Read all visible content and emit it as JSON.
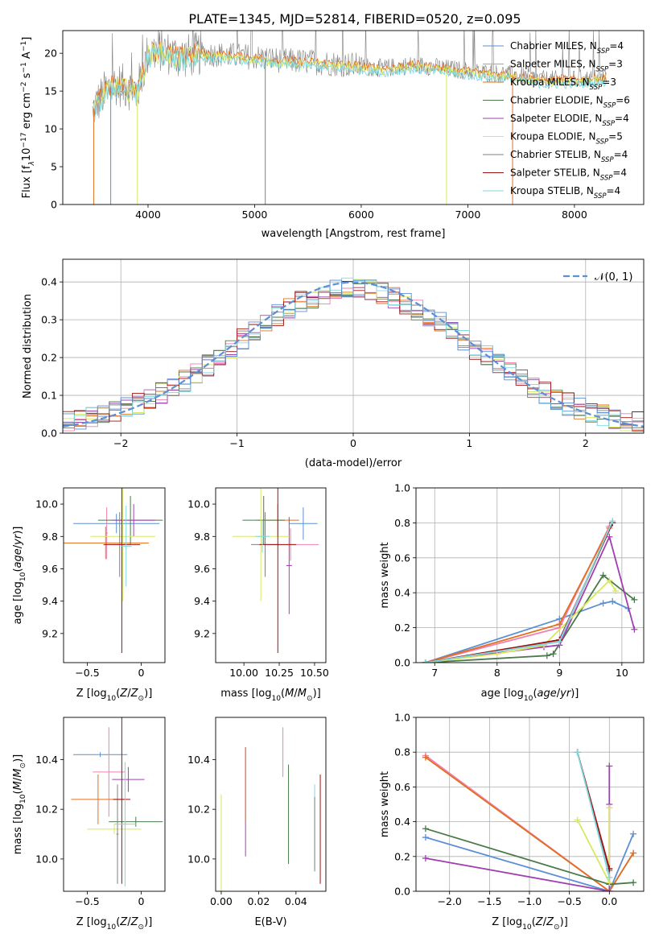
{
  "figure_title": "PLATE=1345, MJD=52814, FIBERID=0520, z=0.095",
  "colors": {
    "chabrier_miles": "#5b8fd6",
    "salpeter_miles": "#f07fb0",
    "kroupa_miles": "#e07020",
    "chabrier_elodie": "#4a7a4a",
    "salpeter_elodie": "#a040b0",
    "kroupa_elodie": "#d8e860",
    "chabrier_stelib": "#808080",
    "salpeter_stelib": "#a01010",
    "kroupa_stelib": "#80d8e0",
    "normal_curve": "#5b8fd6",
    "grid": "#b0b0b0"
  },
  "legend_spectrum": [
    {
      "key": "chabrier_miles",
      "label": "Chabrier MILES, N",
      "sub": "SSP",
      "tail": "=4"
    },
    {
      "key": "salpeter_miles",
      "label": "Salpeter MILES, N",
      "sub": "SSP",
      "tail": "=3"
    },
    {
      "key": "kroupa_miles",
      "label": "Kroupa MILES, N",
      "sub": "SSP",
      "tail": "=3"
    },
    {
      "key": "chabrier_elodie",
      "label": "Chabrier ELODIE, N",
      "sub": "SSP",
      "tail": "=6"
    },
    {
      "key": "salpeter_elodie",
      "label": "Salpeter ELODIE, N",
      "sub": "SSP",
      "tail": "=4"
    },
    {
      "key": "kroupa_elodie",
      "label": "Kroupa ELODIE, N",
      "sub": "SSP",
      "tail": "=5"
    },
    {
      "key": "chabrier_stelib",
      "label": "Chabrier STELIB, N",
      "sub": "SSP",
      "tail": "=4"
    },
    {
      "key": "salpeter_stelib",
      "label": "Salpeter STELIB, N",
      "sub": "SSP",
      "tail": "=4"
    },
    {
      "key": "kroupa_stelib",
      "label": "Kroupa STELIB, N",
      "sub": "SSP",
      "tail": "=4"
    }
  ],
  "chart_data": [
    {
      "id": "spectrum",
      "type": "line",
      "xlabel": "wavelength [Angstrom, rest frame]",
      "ylabel": "Flux [f",
      "ylabel_full": "Flux [f_λ 10^-17 erg cm^-2 s^-1 A^-1]",
      "xlim": [
        3200,
        8650
      ],
      "ylim": [
        0,
        23
      ],
      "xticks": [
        4000,
        5000,
        6000,
        7000,
        8000
      ],
      "yticks": [
        0,
        5,
        10,
        15,
        20
      ],
      "grid": false,
      "legend": "top-right",
      "continuum_x": [
        3480,
        3600,
        3700,
        3800,
        3900,
        4000,
        4100,
        4300,
        4500,
        4700,
        5000,
        5300,
        5600,
        5900,
        6200,
        6500,
        6800,
        7100,
        7400,
        7700,
        8000,
        8300
      ],
      "continuum_y": [
        12.5,
        15.0,
        16.0,
        15.5,
        15.0,
        20.0,
        20.5,
        19.5,
        20.0,
        19.8,
        19.5,
        19.0,
        18.8,
        18.5,
        18.0,
        18.5,
        18.0,
        17.5,
        17.2,
        16.5,
        16.5,
        16.8
      ],
      "dips": [
        {
          "key": "chabrier_miles",
          "x": 3650,
          "y": 0
        },
        {
          "key": "kroupa_miles",
          "x": 3490,
          "y": 0
        },
        {
          "key": "kroupa_miles",
          "x": 7420,
          "y": 0
        },
        {
          "key": "kroupa_elodie",
          "x": 3900,
          "y": 0
        },
        {
          "key": "kroupa_elodie",
          "x": 6800,
          "y": 0
        },
        {
          "key": "chabrier_stelib",
          "x": 5100,
          "y": 0
        }
      ]
    },
    {
      "id": "residuals",
      "type": "histogram",
      "xlabel": "(data-model)/error",
      "ylabel": "Normed distribution",
      "xlim": [
        -2.5,
        2.5
      ],
      "ylim": [
        0,
        0.46
      ],
      "xticks": [
        -2,
        -1,
        0,
        1,
        2
      ],
      "yticks": [
        0.0,
        0.1,
        0.2,
        0.3,
        0.4
      ],
      "grid": true,
      "legend": "top-right",
      "legend_label": "𝒩(0, 1)",
      "bin_width": 0.1,
      "bin_start": -2.5
    },
    {
      "id": "age_vs_Z",
      "type": "errorbar",
      "xlabel": "Z [log",
      "ylabel": "age  [log",
      "xlim": [
        -0.72,
        0.22
      ],
      "ylim": [
        9.02,
        10.1
      ],
      "xticks": [
        -0.5,
        0.0
      ],
      "yticks": [
        9.2,
        9.4,
        9.6,
        9.8,
        10.0
      ],
      "points": [
        {
          "key": "chabrier_miles",
          "x": -0.23,
          "y": 9.88,
          "xerr": 0.4,
          "yerr": 0.06
        },
        {
          "key": "salpeter_miles",
          "x": -0.32,
          "y": 9.82,
          "xerr": 0.01,
          "yerr": 0.16
        },
        {
          "key": "kroupa_miles",
          "x": -0.33,
          "y": 9.76,
          "xerr": 0.4,
          "yerr": 0.1
        },
        {
          "key": "chabrier_elodie",
          "x": -0.1,
          "y": 9.9,
          "xerr": 0.3,
          "yerr": 0.15
        },
        {
          "key": "salpeter_elodie",
          "x": -0.07,
          "y": 9.9,
          "xerr": 0.2,
          "yerr": 0.1
        },
        {
          "key": "kroupa_elodie",
          "x": -0.17,
          "y": 9.8,
          "xerr": 0.3,
          "yerr": 0.4
        },
        {
          "key": "chabrier_stelib",
          "x": -0.2,
          "y": 9.75,
          "xerr": 0.1,
          "yerr": 0.2
        },
        {
          "key": "salpeter_stelib",
          "x": -0.18,
          "y": 9.75,
          "xerr": 0.17,
          "yerr": 0.67
        },
        {
          "key": "kroupa_stelib",
          "x": -0.14,
          "y": 9.74,
          "xerr": 0.05,
          "yerr": 0.25
        }
      ]
    },
    {
      "id": "age_vs_mass",
      "type": "errorbar",
      "xlabel": "mass [log",
      "ylabel": "",
      "xlim": [
        9.8,
        10.58
      ],
      "ylim": [
        9.02,
        10.1
      ],
      "xticks": [
        10.0,
        10.25,
        10.5
      ],
      "xticklabels": [
        "10.00",
        "10.25",
        "10.50"
      ],
      "yticks": [
        9.2,
        9.4,
        9.6,
        9.8,
        10.0
      ],
      "points": [
        {
          "key": "chabrier_miles",
          "x": 10.42,
          "y": 9.88,
          "xerr": 0.1,
          "yerr": 0.1
        },
        {
          "key": "salpeter_miles",
          "x": 10.33,
          "y": 9.75,
          "xerr": 0.2,
          "yerr": 0.1
        },
        {
          "key": "kroupa_miles",
          "x": 10.24,
          "y": 9.9,
          "xerr": 0.15,
          "yerr": 0.1
        },
        {
          "key": "chabrier_elodie",
          "x": 10.14,
          "y": 9.9,
          "xerr": 0.15,
          "yerr": 0.15
        },
        {
          "key": "salpeter_elodie",
          "x": 10.32,
          "y": 9.62,
          "xerr": 0.02,
          "yerr": 0.3
        },
        {
          "key": "kroupa_elodie",
          "x": 10.12,
          "y": 9.8,
          "xerr": 0.2,
          "yerr": 0.4
        },
        {
          "key": "chabrier_stelib",
          "x": 10.15,
          "y": 9.75,
          "xerr": 0.1,
          "yerr": 0.2
        },
        {
          "key": "salpeter_stelib",
          "x": 10.24,
          "y": 9.75,
          "xerr": 0.13,
          "yerr": 0.67
        },
        {
          "key": "kroupa_stelib",
          "x": 10.13,
          "y": 9.8,
          "xerr": 0.05,
          "yerr": 0.1
        }
      ]
    },
    {
      "id": "mass_weight_vs_age",
      "type": "line",
      "xlabel": "age  [log",
      "ylabel": "mass weight",
      "xlim": [
        6.7,
        10.35
      ],
      "ylim": [
        0,
        1.0
      ],
      "xticks": [
        7,
        8,
        9,
        10
      ],
      "yticks": [
        0.0,
        0.2,
        0.4,
        0.6,
        0.8,
        1.0
      ],
      "grid": true,
      "series": [
        {
          "key": "chabrier_miles",
          "x": [
            6.85,
            9.0,
            9.7,
            9.85,
            10.1
          ],
          "y": [
            0.0,
            0.25,
            0.34,
            0.35,
            0.31
          ]
        },
        {
          "key": "salpeter_miles",
          "x": [
            6.85,
            9.0,
            9.8
          ],
          "y": [
            0.0,
            0.2,
            0.78
          ]
        },
        {
          "key": "kroupa_miles",
          "x": [
            6.85,
            9.0,
            9.8
          ],
          "y": [
            0.0,
            0.22,
            0.77
          ]
        },
        {
          "key": "chabrier_elodie",
          "x": [
            6.85,
            8.8,
            8.9,
            9.7,
            10.2
          ],
          "y": [
            0.0,
            0.04,
            0.05,
            0.5,
            0.36
          ]
        },
        {
          "key": "salpeter_elodie",
          "x": [
            6.85,
            8.75,
            9.0,
            9.8,
            10.2
          ],
          "y": [
            0.0,
            0.09,
            0.1,
            0.72,
            0.19
          ]
        },
        {
          "key": "kroupa_elodie",
          "x": [
            6.85,
            8.0,
            8.75,
            9.8,
            9.9
          ],
          "y": [
            0.0,
            0.05,
            0.1,
            0.47,
            0.41
          ]
        },
        {
          "key": "chabrier_stelib",
          "x": [
            6.85,
            9.0,
            9.85
          ],
          "y": [
            0.0,
            0.12,
            0.8
          ]
        },
        {
          "key": "salpeter_stelib",
          "x": [
            6.85,
            9.0,
            9.85
          ],
          "y": [
            0.0,
            0.13,
            0.8
          ]
        },
        {
          "key": "kroupa_stelib",
          "x": [
            6.85,
            9.0,
            9.85
          ],
          "y": [
            0.0,
            0.12,
            0.81
          ]
        }
      ]
    },
    {
      "id": "mass_vs_Z",
      "type": "errorbar",
      "xlabel": "Z [log",
      "ylabel": "mass [log",
      "xlim": [
        -0.72,
        0.22
      ],
      "ylim": [
        9.87,
        10.57
      ],
      "xticks": [
        -0.5,
        0.0
      ],
      "yticks": [
        10.0,
        10.2,
        10.4
      ],
      "points": [
        {
          "key": "chabrier_miles",
          "x": -0.38,
          "y": 10.42,
          "xerr": 0.25,
          "yerr": 0.01
        },
        {
          "key": "salpeter_miles",
          "x": -0.3,
          "y": 10.35,
          "xerr": 0.15,
          "yerr": 0.18
        },
        {
          "key": "kroupa_miles",
          "x": -0.4,
          "y": 10.24,
          "xerr": 0.25,
          "yerr": 0.1
        },
        {
          "key": "chabrier_elodie",
          "x": -0.05,
          "y": 10.15,
          "xerr": 0.25,
          "yerr": 0.02
        },
        {
          "key": "salpeter_elodie",
          "x": -0.12,
          "y": 10.32,
          "xerr": 0.15,
          "yerr": 0.05
        },
        {
          "key": "kroupa_elodie",
          "x": -0.25,
          "y": 10.12,
          "xerr": 0.25,
          "yerr": 0.02
        },
        {
          "key": "chabrier_stelib",
          "x": -0.22,
          "y": 10.1,
          "xerr": 0.01,
          "yerr": 0.2
        },
        {
          "key": "salpeter_stelib",
          "x": -0.18,
          "y": 10.24,
          "xerr": 0.08,
          "yerr": 0.34
        },
        {
          "key": "kroupa_stelib",
          "x": -0.15,
          "y": 10.14,
          "xerr": 0.1,
          "yerr": 0.25
        }
      ]
    },
    {
      "id": "mass_vs_ebv",
      "type": "errorbar",
      "xlabel": "E(B-V)",
      "ylabel": "",
      "xlim": [
        -0.003,
        0.056
      ],
      "ylim": [
        9.87,
        10.57
      ],
      "xticks": [
        0.0,
        0.02,
        0.04
      ],
      "xticklabels": [
        "0.00",
        "0.02",
        "0.04"
      ],
      "yticks": [
        10.0,
        10.2,
        10.4
      ],
      "points": [
        {
          "key": "kroupa_elodie",
          "x": 0.0,
          "y": 10.06,
          "xerr": 0.0,
          "yerr": 0.2
        },
        {
          "key": "salpeter_elodie",
          "x": 0.013,
          "y": 10.23,
          "xerr": 0.0,
          "yerr": 0.22
        },
        {
          "key": "kroupa_miles",
          "x": 0.013,
          "y": 10.3,
          "xerr": 0.0,
          "yerr": 0.15
        },
        {
          "key": "salpeter_miles",
          "x": 0.033,
          "y": 10.43,
          "xerr": 0.0,
          "yerr": 0.1
        },
        {
          "key": "chabrier_elodie",
          "x": 0.036,
          "y": 10.18,
          "xerr": 0.0,
          "yerr": 0.2
        },
        {
          "key": "kroupa_stelib",
          "x": 0.05,
          "y": 10.13,
          "xerr": 0.0,
          "yerr": 0.17
        },
        {
          "key": "chabrier_stelib",
          "x": 0.05,
          "y": 10.1,
          "xerr": 0.0,
          "yerr": 0.15
        },
        {
          "key": "salpeter_stelib",
          "x": 0.053,
          "y": 10.12,
          "xerr": 0.0,
          "yerr": 0.22
        }
      ]
    },
    {
      "id": "mass_weight_vs_Z",
      "type": "line",
      "xlabel": "Z [log",
      "ylabel": "mass weight",
      "xlim": [
        -2.42,
        0.43
      ],
      "ylim": [
        0,
        1.0
      ],
      "xticks": [
        -2.0,
        -1.5,
        -1.0,
        -0.5,
        0.0
      ],
      "xticklabels": [
        "−2.0",
        "−1.5",
        "−1.0",
        "−0.5",
        "0.0"
      ],
      "yticks": [
        0.0,
        0.2,
        0.4,
        0.6,
        0.8,
        1.0
      ],
      "grid": true,
      "series": [
        {
          "key": "chabrier_miles",
          "x": [
            -2.3,
            0.0,
            0.3
          ],
          "y": [
            0.31,
            0.0,
            0.33
          ]
        },
        {
          "key": "salpeter_miles",
          "x": [
            -2.3,
            0.0,
            0.3
          ],
          "y": [
            0.78,
            0.0,
            0.22
          ]
        },
        {
          "key": "kroupa_miles",
          "x": [
            -2.3,
            0.0,
            0.3
          ],
          "y": [
            0.77,
            0.0,
            0.22
          ]
        },
        {
          "key": "chabrier_elodie",
          "x": [
            -2.3,
            0.0,
            0.3
          ],
          "y": [
            0.36,
            0.04,
            0.05
          ]
        },
        {
          "key": "salpeter_elodie",
          "x": [
            -2.3,
            0.0,
            0.0,
            0.0
          ],
          "y": [
            0.19,
            0.0,
            0.72,
            0.5
          ]
        },
        {
          "key": "kroupa_elodie",
          "x": [
            -0.4,
            0.0,
            0.0
          ],
          "y": [
            0.41,
            0.05,
            0.48
          ]
        },
        {
          "key": "chabrier_stelib",
          "x": [
            -0.4,
            0.0
          ],
          "y": [
            0.8,
            0.12
          ]
        },
        {
          "key": "salpeter_stelib",
          "x": [
            -0.4,
            0.0
          ],
          "y": [
            0.8,
            0.13
          ]
        },
        {
          "key": "kroupa_stelib",
          "x": [
            -0.4,
            0.0
          ],
          "y": [
            0.8,
            0.08
          ]
        }
      ]
    }
  ]
}
